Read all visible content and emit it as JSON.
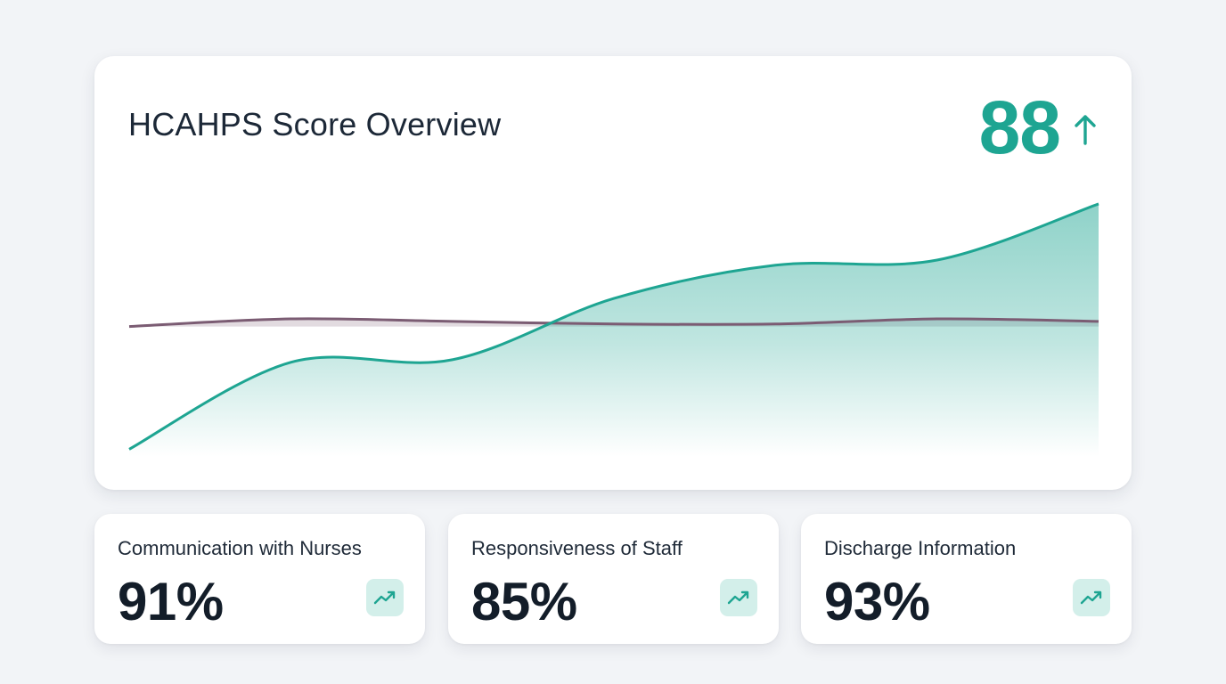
{
  "overview": {
    "title": "HCAHPS Score Overview",
    "score": "88",
    "score_icon": "arrow-up-icon",
    "accent_color": "#1ea592",
    "secondary_color": "#7b5c73"
  },
  "chart_data": {
    "type": "area",
    "x": [
      0,
      1,
      2,
      3,
      4,
      5,
      6
    ],
    "series": [
      {
        "values": [
          3,
          37,
          38,
          62,
          75,
          77,
          99
        ]
      },
      {
        "values": [
          51,
          54,
          53,
          52,
          52,
          54,
          53
        ]
      }
    ],
    "ylim": [
      0,
      100
    ],
    "grid": false
  },
  "kpis": [
    {
      "label": "Communication with Nurses",
      "value": "91%",
      "icon": "trending-up-icon"
    },
    {
      "label": "Responsiveness of Staff",
      "value": "85%",
      "icon": "trending-up-icon"
    },
    {
      "label": "Discharge Information",
      "value": "93%",
      "icon": "trending-up-icon"
    }
  ]
}
